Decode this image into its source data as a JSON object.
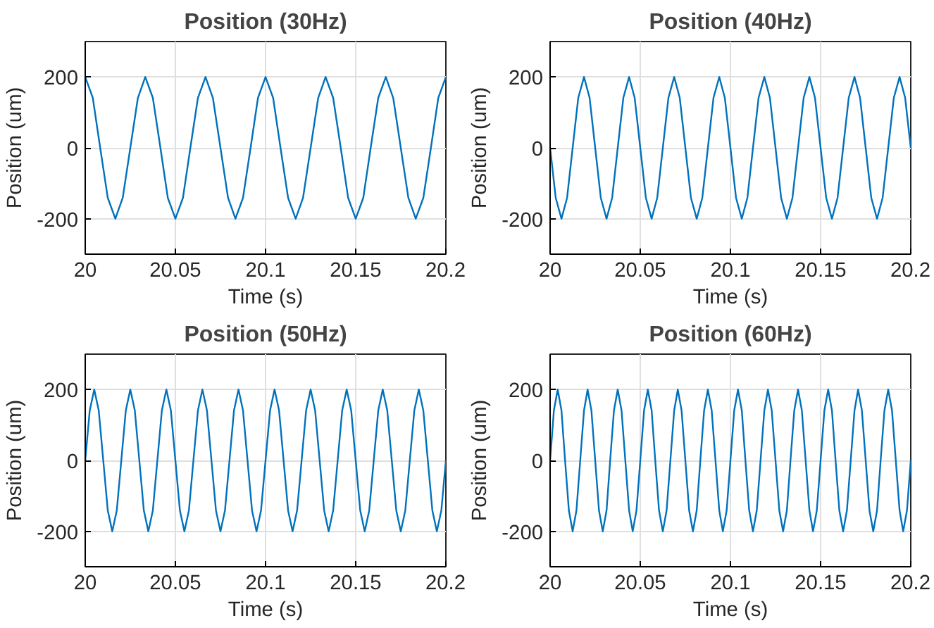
{
  "chart_data": [
    {
      "type": "line",
      "title": "Position (30Hz)",
      "xlabel": "Time (s)",
      "ylabel": "Position (um)",
      "xlim": [
        20,
        20.2
      ],
      "xticks": [
        20,
        20.05,
        20.1,
        20.15,
        20.2
      ],
      "ylim": [
        -300,
        300
      ],
      "yticks": [
        -200,
        0,
        200
      ],
      "grid": true,
      "x": [
        20,
        20.0042,
        20.0083,
        20.0125,
        20.0167,
        20.0208,
        20.025,
        20.0292,
        20.0333,
        20.0375,
        20.0417,
        20.0458,
        20.05,
        20.0542,
        20.0583,
        20.0625,
        20.0667,
        20.0708,
        20.075,
        20.0792,
        20.0833,
        20.0875,
        20.0917,
        20.0958,
        20.1,
        20.1042,
        20.1083,
        20.1125,
        20.1167,
        20.1208,
        20.125,
        20.1292,
        20.1333,
        20.1375,
        20.1417,
        20.1458,
        20.15,
        20.1542,
        20.1583,
        20.1625,
        20.1667,
        20.1708,
        20.175,
        20.1792,
        20.1833,
        20.1875,
        20.1917,
        20.1958,
        20.2
      ],
      "series": [
        {
          "color": "#0072bd",
          "values": [
            200,
            141,
            0,
            -141,
            -200,
            -141,
            0,
            141,
            200,
            141,
            0,
            -141,
            -200,
            -141,
            0,
            141,
            200,
            141,
            0,
            -141,
            -200,
            -141,
            0,
            141,
            200,
            141,
            0,
            -141,
            -200,
            -141,
            0,
            141,
            200,
            141,
            0,
            -141,
            -200,
            -141,
            0,
            141,
            200,
            141,
            0,
            -141,
            -200,
            -141,
            0,
            141,
            200
          ]
        }
      ]
    },
    {
      "type": "line",
      "title": "Position (40Hz)",
      "xlabel": "Time (s)",
      "ylabel": "Position (um)",
      "xlim": [
        20,
        20.2
      ],
      "xticks": [
        20,
        20.05,
        20.1,
        20.15,
        20.2
      ],
      "ylim": [
        -300,
        300
      ],
      "yticks": [
        -200,
        0,
        200
      ],
      "grid": true,
      "x": [
        20,
        20.0031,
        20.0063,
        20.0094,
        20.0125,
        20.0156,
        20.0188,
        20.0219,
        20.025,
        20.0281,
        20.0313,
        20.0344,
        20.0375,
        20.0406,
        20.0438,
        20.0469,
        20.05,
        20.0531,
        20.0563,
        20.0594,
        20.0625,
        20.0656,
        20.0688,
        20.0719,
        20.075,
        20.0781,
        20.0813,
        20.0844,
        20.0875,
        20.0906,
        20.0938,
        20.0969,
        20.1,
        20.1031,
        20.1063,
        20.1094,
        20.1125,
        20.1156,
        20.1188,
        20.1219,
        20.125,
        20.1281,
        20.1313,
        20.1344,
        20.1375,
        20.1406,
        20.1438,
        20.1469,
        20.15,
        20.1531,
        20.1563,
        20.1594,
        20.1625,
        20.1656,
        20.1688,
        20.1719,
        20.175,
        20.1781,
        20.1813,
        20.1844,
        20.1875,
        20.1906,
        20.1938,
        20.1969,
        20.2
      ],
      "series": [
        {
          "color": "#0072bd",
          "values": [
            0,
            -141,
            -200,
            -141,
            0,
            141,
            200,
            141,
            0,
            -141,
            -200,
            -141,
            0,
            141,
            200,
            141,
            0,
            -141,
            -200,
            -141,
            0,
            141,
            200,
            141,
            0,
            -141,
            -200,
            -141,
            0,
            141,
            200,
            141,
            0,
            -141,
            -200,
            -141,
            0,
            141,
            200,
            141,
            0,
            -141,
            -200,
            -141,
            0,
            141,
            200,
            141,
            0,
            -141,
            -200,
            -141,
            0,
            141,
            200,
            141,
            0,
            -141,
            -200,
            -141,
            0,
            141,
            200,
            141,
            0
          ]
        }
      ]
    },
    {
      "type": "line",
      "title": "Position (50Hz)",
      "xlabel": "Time (s)",
      "ylabel": "Position (um)",
      "xlim": [
        20,
        20.2
      ],
      "xticks": [
        20,
        20.05,
        20.1,
        20.15,
        20.2
      ],
      "ylim": [
        -300,
        300
      ],
      "yticks": [
        -200,
        0,
        200
      ],
      "grid": true,
      "x": [
        20,
        20.0025,
        20.005,
        20.0075,
        20.01,
        20.0125,
        20.015,
        20.0175,
        20.02,
        20.0225,
        20.025,
        20.0275,
        20.03,
        20.0325,
        20.035,
        20.0375,
        20.04,
        20.0425,
        20.045,
        20.0475,
        20.05,
        20.0525,
        20.055,
        20.0575,
        20.06,
        20.0625,
        20.065,
        20.0675,
        20.07,
        20.0725,
        20.075,
        20.0775,
        20.08,
        20.0825,
        20.085,
        20.0875,
        20.09,
        20.0925,
        20.095,
        20.0975,
        20.1,
        20.1025,
        20.105,
        20.1075,
        20.11,
        20.1125,
        20.115,
        20.1175,
        20.12,
        20.1225,
        20.125,
        20.1275,
        20.13,
        20.1325,
        20.135,
        20.1375,
        20.14,
        20.1425,
        20.145,
        20.1475,
        20.15,
        20.1525,
        20.155,
        20.1575,
        20.16,
        20.1625,
        20.165,
        20.1675,
        20.17,
        20.1725,
        20.175,
        20.1775,
        20.18,
        20.1825,
        20.185,
        20.1875,
        20.19,
        20.1925,
        20.195,
        20.1975,
        20.2
      ],
      "series": [
        {
          "color": "#0072bd",
          "values": [
            0,
            141,
            200,
            141,
            0,
            -141,
            -200,
            -141,
            0,
            141,
            200,
            141,
            0,
            -141,
            -200,
            -141,
            0,
            141,
            200,
            141,
            0,
            -141,
            -200,
            -141,
            0,
            141,
            200,
            141,
            0,
            -141,
            -200,
            -141,
            0,
            141,
            200,
            141,
            0,
            -141,
            -200,
            -141,
            0,
            141,
            200,
            141,
            0,
            -141,
            -200,
            -141,
            0,
            141,
            200,
            141,
            0,
            -141,
            -200,
            -141,
            0,
            141,
            200,
            141,
            0,
            -141,
            -200,
            -141,
            0,
            141,
            200,
            141,
            0,
            -141,
            -200,
            -141,
            0,
            141,
            200,
            141,
            0,
            -141,
            -200,
            -141,
            0
          ]
        }
      ]
    },
    {
      "type": "line",
      "title": "Position (60Hz)",
      "xlabel": "Time (s)",
      "ylabel": "Position (um)",
      "xlim": [
        20,
        20.2
      ],
      "xticks": [
        20,
        20.05,
        20.1,
        20.15,
        20.2
      ],
      "ylim": [
        -300,
        300
      ],
      "yticks": [
        -200,
        0,
        200
      ],
      "grid": true,
      "x": [
        20,
        20.0021,
        20.0042,
        20.0063,
        20.0083,
        20.0104,
        20.0125,
        20.0146,
        20.0167,
        20.0188,
        20.0208,
        20.0229,
        20.025,
        20.0271,
        20.0292,
        20.0313,
        20.0333,
        20.0354,
        20.0375,
        20.0396,
        20.0417,
        20.0438,
        20.0458,
        20.0479,
        20.05,
        20.0521,
        20.0542,
        20.0563,
        20.0583,
        20.0604,
        20.0625,
        20.0646,
        20.0667,
        20.0688,
        20.0708,
        20.0729,
        20.075,
        20.0771,
        20.0792,
        20.0813,
        20.0833,
        20.0854,
        20.0875,
        20.0896,
        20.0917,
        20.0938,
        20.0958,
        20.0979,
        20.1,
        20.1021,
        20.1042,
        20.1063,
        20.1083,
        20.1104,
        20.1125,
        20.1146,
        20.1167,
        20.1188,
        20.1208,
        20.1229,
        20.125,
        20.1271,
        20.1292,
        20.1313,
        20.1333,
        20.1354,
        20.1375,
        20.1396,
        20.1417,
        20.1438,
        20.1458,
        20.1479,
        20.15,
        20.1521,
        20.1542,
        20.1563,
        20.1583,
        20.1604,
        20.1625,
        20.1646,
        20.1667,
        20.1688,
        20.1708,
        20.1729,
        20.175,
        20.1771,
        20.1792,
        20.1813,
        20.1833,
        20.1854,
        20.1875,
        20.1896,
        20.1917,
        20.1938,
        20.1958,
        20.1979,
        20.2
      ],
      "series": [
        {
          "color": "#0072bd",
          "values": [
            0,
            141,
            200,
            141,
            0,
            -141,
            -200,
            -141,
            0,
            141,
            200,
            141,
            0,
            -141,
            -200,
            -141,
            0,
            141,
            200,
            141,
            0,
            -141,
            -200,
            -141,
            0,
            141,
            200,
            141,
            0,
            -141,
            -200,
            -141,
            0,
            141,
            200,
            141,
            0,
            -141,
            -200,
            -141,
            0,
            141,
            200,
            141,
            0,
            -141,
            -200,
            -141,
            0,
            141,
            200,
            141,
            0,
            -141,
            -200,
            -141,
            0,
            141,
            200,
            141,
            0,
            -141,
            -200,
            -141,
            0,
            141,
            200,
            141,
            0,
            -141,
            -200,
            -141,
            0,
            141,
            200,
            141,
            0,
            -141,
            -200,
            -141,
            0,
            141,
            200,
            141,
            0,
            -141,
            -200,
            -141,
            0,
            141,
            200,
            141,
            0,
            -141,
            -200,
            -141,
            0
          ]
        }
      ]
    }
  ]
}
